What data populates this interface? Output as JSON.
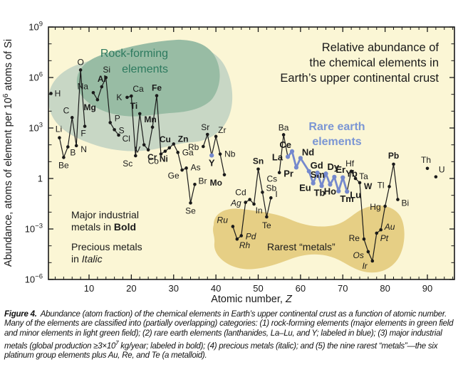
{
  "title": {
    "line1": "Relative abundance of",
    "line2": "the chemical elements in",
    "line3": "Earth’s upper continental crust"
  },
  "annotations": {
    "rock_forming_line1": "Rock-forming",
    "rock_forming_line2": "elements",
    "rare_earth_line1": "Rare earth",
    "rare_earth_line2": "elements",
    "industrial_line1": "Major industrial",
    "industrial_line2_normal": "metals in ",
    "industrial_line2_bold": "Bold",
    "precious_line1": "Precious metals",
    "precious_line2_normal": "in ",
    "precious_line2_italic": "Italic",
    "rarest": "Rarest “metals”"
  },
  "axes": {
    "x_label": "Atomic number, ",
    "x_label_var": "Z",
    "x_ticks": [
      10,
      20,
      30,
      40,
      50,
      60,
      70,
      80,
      90
    ],
    "x_minor_step": 2,
    "x_range": [
      0.4,
      96.4
    ],
    "y_label_prefix": "Abundance, atoms of element per 10",
    "y_label_sup": "6",
    "y_label_suffix": " atoms of Si",
    "y_ticks": [
      {
        "e": 9,
        "base": "10",
        "exp": "9"
      },
      {
        "e": 6,
        "base": "10",
        "exp": "6"
      },
      {
        "e": 3,
        "base": "10",
        "exp": "3"
      },
      {
        "e": 0,
        "base": "1",
        "exp": ""
      },
      {
        "e": -3,
        "base": "10",
        "exp": "−3"
      },
      {
        "e": -6,
        "base": "10",
        "exp": "−6"
      }
    ],
    "y_range_log": [
      -6,
      9
    ]
  },
  "colors": {
    "ink": "#1a1a1a",
    "plot_bg": "#fbf6d5",
    "ree_blue": "#7589cd",
    "ree_heading": "#7b96d4",
    "green_text": "#2d7a5f",
    "region_major_green": "#98bca4",
    "region_minor_green": "#c8d7c5",
    "region_rarest_tan": "#e6cf85"
  },
  "chart_data": {
    "type": "scatter",
    "scale": "log",
    "units": "atoms of element per 10^6 atoms of Si",
    "value_field": "log10_abundance",
    "point_fields": [
      "atomic_number",
      "symbol",
      "log10_abundance",
      "category",
      "label_dx",
      "label_dy",
      "label_anchor"
    ],
    "category_legend": {
      "n": "normal",
      "b": "major-industrial-bold",
      "i": "precious-italic",
      "r": "rare-earth-blue"
    },
    "points": [
      [
        1,
        "H",
        5.05,
        "n",
        5,
        4,
        "s"
      ],
      [
        3,
        "Li",
        2.42,
        "n",
        -1,
        -8,
        "m"
      ],
      [
        4,
        "Be",
        1.25,
        "n",
        0,
        15,
        "m"
      ],
      [
        5,
        "B",
        1.88,
        "n",
        3,
        12,
        "s"
      ],
      [
        6,
        "C",
        3.62,
        "n",
        -4,
        -6,
        "e"
      ],
      [
        7,
        "N",
        1.95,
        "n",
        6,
        9,
        "s"
      ],
      [
        8,
        "O",
        6.45,
        "n",
        0,
        -7,
        "m"
      ],
      [
        9,
        "F",
        3.1,
        "n",
        -2,
        14,
        "m"
      ],
      [
        11,
        "Na",
        5.1,
        "n",
        -7,
        -5,
        "e"
      ],
      [
        12,
        "Mg",
        4.68,
        "b",
        -2,
        15,
        "e"
      ],
      [
        13,
        "Al",
        5.45,
        "b",
        0,
        -7,
        "m"
      ],
      [
        14,
        "Si",
        6.0,
        "n",
        1,
        -7,
        "m"
      ],
      [
        15,
        "P",
        3.32,
        "n",
        6,
        -2,
        "s"
      ],
      [
        16,
        "S",
        2.9,
        "n",
        6,
        5,
        "s"
      ],
      [
        17,
        "Cl",
        2.58,
        "n",
        5,
        9,
        "s"
      ],
      [
        19,
        "K",
        4.82,
        "n",
        -7,
        4,
        "e"
      ],
      [
        20,
        "Ca",
        4.9,
        "n",
        2,
        -6,
        "s"
      ],
      [
        21,
        "Sc",
        1.35,
        "n",
        -4,
        15,
        "e"
      ],
      [
        22,
        "Ti",
        3.85,
        "b",
        -3,
        -7,
        "e"
      ],
      [
        23,
        "V",
        2.0,
        "n",
        -5,
        11,
        "e"
      ],
      [
        24,
        "Cr",
        1.7,
        "b",
        -1,
        14,
        "s"
      ],
      [
        25,
        "Mn",
        3.05,
        "b",
        -3,
        -7,
        "m"
      ],
      [
        26,
        "Fe",
        4.92,
        "b",
        0,
        -7,
        "m"
      ],
      [
        27,
        "Co",
        1.45,
        "n",
        -3,
        14,
        "e"
      ],
      [
        28,
        "Ni",
        1.62,
        "b",
        -2,
        15,
        "m"
      ],
      [
        29,
        "Cu",
        1.82,
        "b",
        -6,
        -8,
        "m"
      ],
      [
        30,
        "Zn",
        2.05,
        "b",
        6,
        -3,
        "s"
      ],
      [
        31,
        "Ga",
        1.55,
        "n",
        6,
        4,
        "s"
      ],
      [
        32,
        "Ge",
        0.5,
        "n",
        -4,
        12,
        "e"
      ],
      [
        33,
        "As",
        0.62,
        "n",
        6,
        3,
        "s"
      ],
      [
        34,
        "Se",
        -1.45,
        "n",
        0,
        15,
        "m"
      ],
      [
        35,
        "Br",
        -0.35,
        "n",
        5,
        -1,
        "s"
      ],
      [
        37,
        "Rb",
        1.9,
        "n",
        -6,
        5,
        "e"
      ],
      [
        38,
        "Sr",
        2.62,
        "n",
        -3,
        -6,
        "m"
      ],
      [
        39,
        "Y",
        1.37,
        "r",
        0,
        15,
        "m"
      ],
      [
        40,
        "Zr",
        2.5,
        "n",
        3,
        -5,
        "s"
      ],
      [
        41,
        "Nb",
        1.45,
        "n",
        6,
        4,
        "s"
      ],
      [
        42,
        "Mo",
        0.22,
        "b",
        -3,
        15,
        "e"
      ],
      [
        44,
        "Ru",
        -2.85,
        "i",
        -7,
        -5,
        "e"
      ],
      [
        45,
        "Rh",
        -3.6,
        "i",
        3,
        13,
        "s"
      ],
      [
        46,
        "Pd",
        -3.4,
        "i",
        6,
        5,
        "s"
      ],
      [
        47,
        "Ag",
        -1.42,
        "i",
        -6,
        5,
        "e"
      ],
      [
        48,
        "Cd",
        -1.25,
        "n",
        -5,
        -6,
        "e"
      ],
      [
        49,
        "In",
        -1.52,
        "n",
        2,
        13,
        "s"
      ],
      [
        50,
        "Sn",
        0.56,
        "b",
        0,
        -7,
        "m"
      ],
      [
        51,
        "Sb",
        -0.82,
        "n",
        5,
        -2,
        "s"
      ],
      [
        52,
        "Te",
        -2.28,
        "n",
        0,
        16,
        "m"
      ],
      [
        53,
        "I",
        -1.15,
        "n",
        6,
        -1,
        "s"
      ],
      [
        55,
        "Cs",
        0.35,
        "n",
        -3,
        13,
        "e"
      ],
      [
        56,
        "Ba",
        2.6,
        "n",
        0,
        -6,
        "m"
      ],
      [
        57,
        "La",
        1.29,
        "r",
        -7,
        5,
        "e"
      ],
      [
        58,
        "Ce",
        1.61,
        "r",
        -1,
        -5,
        "e"
      ],
      [
        59,
        "Pr",
        0.66,
        "r",
        -4,
        13,
        "e"
      ],
      [
        60,
        "Nd",
        1.21,
        "r",
        2,
        -4,
        "s"
      ],
      [
        62,
        "Sm",
        0.43,
        "r",
        2,
        9,
        "s"
      ],
      [
        63,
        "Eu",
        -0.28,
        "r",
        -3,
        11,
        "e"
      ],
      [
        64,
        "Gd",
        0.34,
        "r",
        -1,
        -6,
        "m"
      ],
      [
        65,
        "Tb",
        -0.44,
        "r",
        -3,
        14,
        "m"
      ],
      [
        66,
        "Dy",
        0.29,
        "r",
        2,
        -5,
        "s"
      ],
      [
        67,
        "Ho",
        -0.36,
        "r",
        0,
        14,
        "m"
      ],
      [
        68,
        "Er",
        0.09,
        "r",
        2,
        -6,
        "s"
      ],
      [
        69,
        "Tm",
        -0.75,
        "r",
        2,
        15,
        "s"
      ],
      [
        70,
        "Yb",
        0.06,
        "r",
        4,
        -1,
        "s"
      ],
      [
        71,
        "Lu",
        -0.78,
        "r",
        4,
        9,
        "s"
      ],
      [
        72,
        "Hf",
        0.43,
        "n",
        -2,
        -7,
        "m"
      ],
      [
        73,
        "Ta",
        0.0,
        "n",
        5,
        1,
        "s"
      ],
      [
        74,
        "W",
        -0.25,
        "b",
        6,
        9,
        "s"
      ],
      [
        75,
        "Re",
        -3.6,
        "n",
        -6,
        3,
        "e"
      ],
      [
        76,
        "Os",
        -4.35,
        "i",
        -6,
        9,
        "e"
      ],
      [
        77,
        "Ir",
        -4.9,
        "i",
        -7,
        11,
        "e"
      ],
      [
        78,
        "Pt",
        -3.25,
        "i",
        5,
        11,
        "s"
      ],
      [
        79,
        "Au",
        -3.05,
        "i",
        5,
        0,
        "s"
      ],
      [
        80,
        "Hg",
        -1.65,
        "n",
        -6,
        5,
        "e"
      ],
      [
        81,
        "Tl",
        -0.48,
        "n",
        -7,
        2,
        "e"
      ],
      [
        82,
        "Pb",
        0.85,
        "b",
        0,
        -8,
        "m"
      ],
      [
        83,
        "Bi",
        -1.25,
        "n",
        5,
        9,
        "s"
      ],
      [
        90,
        "Th",
        0.6,
        "n",
        -2,
        -8,
        "m"
      ],
      [
        92,
        "U",
        0.1,
        "n",
        4,
        -6,
        "s"
      ]
    ],
    "segments": [
      [
        "Li",
        "Be",
        "B",
        "C",
        "N",
        "O",
        "F"
      ],
      [
        "Na",
        "Mg",
        "Al",
        "Si",
        "P",
        "S",
        "Cl"
      ],
      [
        "K",
        "Ca",
        "Sc",
        "Ti",
        "V",
        "Cr",
        "Mn",
        "Fe",
        "Co",
        "Ni",
        "Cu",
        "Zn",
        "Ga",
        "Ge",
        "As",
        "Se",
        "Br"
      ],
      [
        "Rb",
        "Sr",
        "Y",
        "Zr",
        "Nb",
        "Mo"
      ],
      [
        "Ru",
        "Rh",
        "Pd",
        "Ag",
        "Cd",
        "In",
        "Sn",
        "Sb",
        "Te",
        "I"
      ],
      [
        "Cs",
        "Ba",
        "La"
      ],
      [
        "Lu",
        "Hf",
        "Ta",
        "W",
        "Re",
        "Os",
        "Ir",
        "Pt",
        "Au",
        "Hg",
        "Tl",
        "Pb",
        "Bi"
      ]
    ],
    "ree_segment": [
      "La",
      "Ce",
      "Pr",
      "Nd",
      "Sm",
      "Eu",
      "Gd",
      "Tb",
      "Dy",
      "Ho",
      "Er",
      "Tm",
      "Yb",
      "Lu"
    ]
  },
  "caption": {
    "label": "Figure 4.",
    "t1": "Abundance (atom fraction) of the chemical elements in Earth’s upper continental crust as a function of atomic number. Many of the elements are classified into (partially overlapping) categories: (1) rock-forming elements (major elements in green field and minor elements in light green field); (2) rare earth elements (lanthanides, La–Lu, and Y; labeled in blue); (3) major industrial metals (global production ≥3×10",
    "sup": "7",
    "t2": " kg/year; labeled in bold); (4) precious metals (italic); and (5) the nine rarest “metals”—the six platinum group elements plus Au, Re, and Te (a metalloid)."
  }
}
